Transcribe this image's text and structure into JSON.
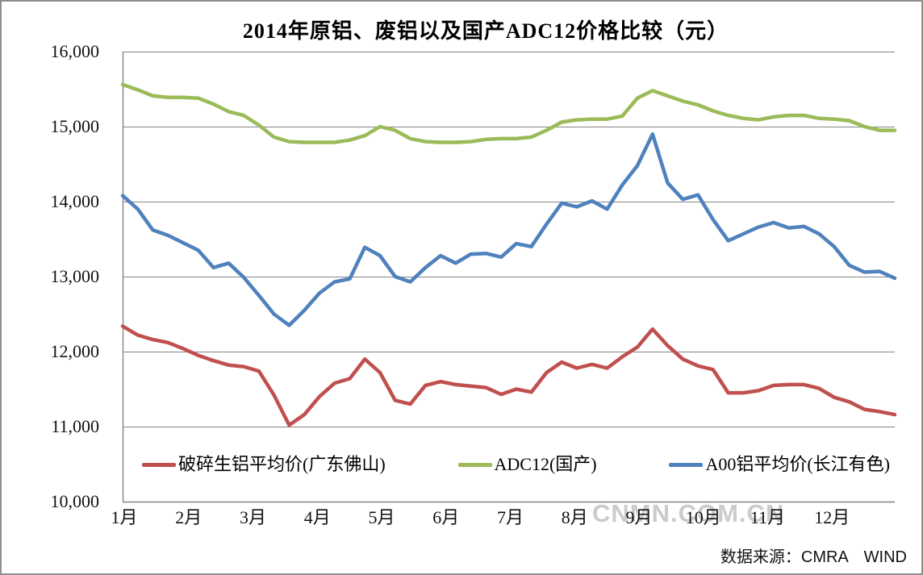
{
  "title": "2014年原铝、废铝以及国产ADC12价格比较（元）",
  "watermark": "CNMN.COM.CN",
  "source_note": "数据来源：CMRA　WIND",
  "axes": {
    "y_ticks": [
      "16,000",
      "15,000",
      "14,000",
      "13,000",
      "12,000",
      "11,000",
      "10,000"
    ],
    "x_ticks": [
      "1月",
      "2月",
      "3月",
      "4月",
      "5月",
      "6月",
      "7月",
      "8月",
      "9月",
      "10月",
      "11月",
      "12月"
    ]
  },
  "legend": {
    "items": [
      {
        "label": "破碎生铝平均价(广东佛山)",
        "color": "#C0504D"
      },
      {
        "label": "ADC12(国产)",
        "color": "#9BBB59"
      },
      {
        "label": "A00铝平均价(长江有色)",
        "color": "#4F81BD"
      }
    ]
  },
  "chart_data": {
    "type": "line",
    "title": "2014年原铝、废铝以及国产ADC12价格比较（元）",
    "x_unit": "2014年每周一点（52点），横轴按月标注",
    "categories": [
      "1月",
      "2月",
      "3月",
      "4月",
      "5月",
      "6月",
      "7月",
      "8月",
      "9月",
      "10月",
      "11月",
      "12月"
    ],
    "ylim": [
      10000,
      16000
    ],
    "ytick_step": 1000,
    "grid": true,
    "legend_position": "bottom",
    "colors": {
      "grid": "#848484",
      "axis": "#848484",
      "frame": "#8e8e8e"
    },
    "series": [
      {
        "name": "破碎生铝平均价(广东佛山)",
        "color": "#C0504D",
        "values": [
          12340,
          12220,
          12160,
          12120,
          12040,
          11950,
          11880,
          11820,
          11800,
          11740,
          11420,
          11020,
          11160,
          11400,
          11580,
          11640,
          11900,
          11720,
          11350,
          11300,
          11550,
          11600,
          11560,
          11540,
          11520,
          11430,
          11500,
          11460,
          11720,
          11860,
          11780,
          11830,
          11780,
          11930,
          12060,
          12300,
          12080,
          11900,
          11810,
          11760,
          11450,
          11450,
          11480,
          11550,
          11560,
          11560,
          11510,
          11390,
          11330,
          11230,
          11200,
          11160
        ]
      },
      {
        "name": "ADC12(国产)",
        "color": "#9BBB59",
        "values": [
          15560,
          15490,
          15410,
          15390,
          15390,
          15380,
          15300,
          15200,
          15150,
          15020,
          14860,
          14800,
          14790,
          14790,
          14790,
          14820,
          14880,
          15000,
          14950,
          14840,
          14800,
          14790,
          14790,
          14800,
          14830,
          14840,
          14840,
          14860,
          14950,
          15060,
          15090,
          15100,
          15100,
          15140,
          15380,
          15480,
          15410,
          15340,
          15290,
          15210,
          15150,
          15110,
          15090,
          15130,
          15150,
          15150,
          15110,
          15100,
          15080,
          15000,
          14950,
          14950
        ]
      },
      {
        "name": "A00铝平均价(长江有色)",
        "color": "#4F81BD",
        "values": [
          14080,
          13900,
          13620,
          13550,
          13450,
          13350,
          13120,
          13180,
          12990,
          12750,
          12500,
          12350,
          12550,
          12780,
          12930,
          12970,
          13390,
          13280,
          13000,
          12930,
          13120,
          13280,
          13180,
          13300,
          13310,
          13260,
          13440,
          13400,
          13700,
          13980,
          13930,
          14010,
          13900,
          14220,
          14480,
          14900,
          14250,
          14030,
          14090,
          13760,
          13480,
          13570,
          13660,
          13720,
          13650,
          13670,
          13570,
          13400,
          13150,
          13060,
          13070,
          12980
        ]
      }
    ]
  }
}
